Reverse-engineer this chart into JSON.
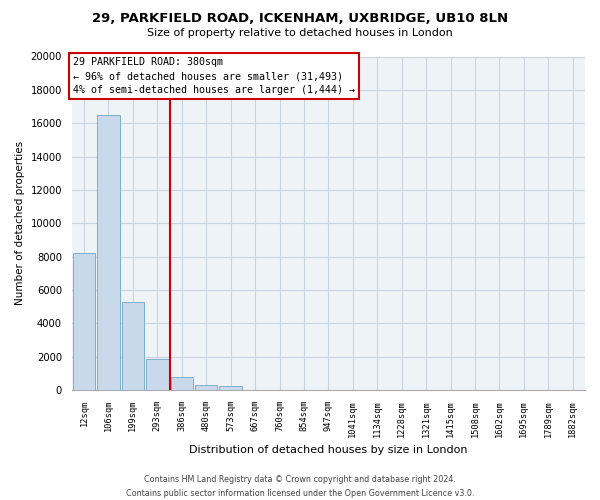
{
  "title": "29, PARKFIELD ROAD, ICKENHAM, UXBRIDGE, UB10 8LN",
  "subtitle": "Size of property relative to detached houses in London",
  "xlabel": "Distribution of detached houses by size in London",
  "ylabel": "Number of detached properties",
  "bar_labels": [
    "12sqm",
    "106sqm",
    "199sqm",
    "293sqm",
    "386sqm",
    "480sqm",
    "573sqm",
    "667sqm",
    "760sqm",
    "854sqm",
    "947sqm",
    "1041sqm",
    "1134sqm",
    "1228sqm",
    "1321sqm",
    "1415sqm",
    "1508sqm",
    "1602sqm",
    "1695sqm",
    "1789sqm",
    "1882sqm"
  ],
  "bar_values": [
    8200,
    16500,
    5300,
    1850,
    800,
    300,
    250,
    0,
    0,
    0,
    0,
    0,
    0,
    0,
    0,
    0,
    0,
    0,
    0,
    0,
    0
  ],
  "bar_color": "#c8d9eb",
  "bar_edge_color": "#7faece",
  "property_line_color": "#cc0000",
  "annotation_title": "29 PARKFIELD ROAD: 380sqm",
  "annotation_line1": "← 96% of detached houses are smaller (31,493)",
  "annotation_line2": "4% of semi-detached houses are larger (1,444) →",
  "annotation_box_color": "#ffffff",
  "annotation_box_edge": "#cc0000",
  "ylim": [
    0,
    20000
  ],
  "yticks": [
    0,
    2000,
    4000,
    6000,
    8000,
    10000,
    12000,
    14000,
    16000,
    18000,
    20000
  ],
  "footer_line1": "Contains HM Land Registry data © Crown copyright and database right 2024.",
  "footer_line2": "Contains public sector information licensed under the Open Government Licence v3.0.",
  "background_color": "#ffffff",
  "grid_color": "#c8d4e0"
}
